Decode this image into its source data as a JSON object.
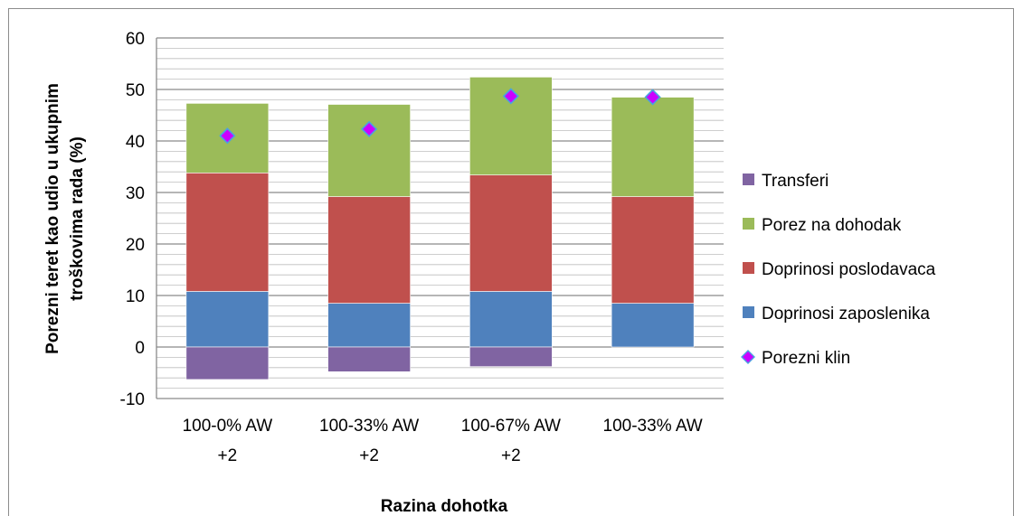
{
  "chart_data": {
    "type": "bar",
    "stacked": true,
    "title": "",
    "xlabel": "Razina dohotka",
    "ylabel_lines": [
      "Porezni teret kao udio u ukupnim",
      "troškovima rada (%)"
    ],
    "ylim": [
      -10,
      60
    ],
    "yticks": [
      -10,
      0,
      10,
      20,
      30,
      40,
      50,
      60
    ],
    "grid": true,
    "legend_position": "right",
    "categories": [
      [
        "100-0% AW",
        "+2"
      ],
      [
        "100-33% AW",
        "+2"
      ],
      [
        "100-67% AW",
        "+2"
      ],
      [
        "100-33% AW"
      ]
    ],
    "series": [
      {
        "name": "Doprinosi zaposlenika",
        "type": "bar",
        "color": "#4F81BD",
        "values": [
          10.8,
          8.5,
          10.8,
          8.5
        ]
      },
      {
        "name": "Doprinosi poslodavaca",
        "type": "bar",
        "color": "#C0504D",
        "values": [
          23.0,
          20.7,
          22.6,
          20.7
        ]
      },
      {
        "name": "Porez na dohodak",
        "type": "bar",
        "color": "#9BBB59",
        "values": [
          13.5,
          17.9,
          19.0,
          19.3
        ]
      },
      {
        "name": "Transferi",
        "type": "bar",
        "color": "#8064A2",
        "values": [
          -6.3,
          -4.8,
          -3.8,
          0
        ]
      },
      {
        "name": "Porezni klin",
        "type": "marker",
        "color": "#CC00FF",
        "values": [
          41.0,
          42.3,
          48.7,
          48.5
        ]
      }
    ],
    "legend_order": [
      "Transferi",
      "Porez na dohodak",
      "Doprinosi poslodavaca",
      "Doprinosi zaposlenika",
      "Porezni klin"
    ]
  }
}
